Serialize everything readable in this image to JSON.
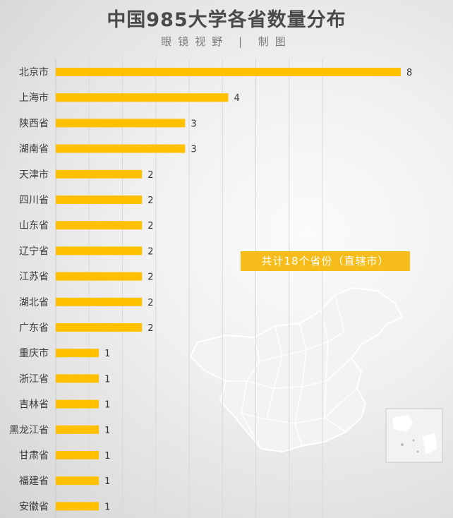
{
  "header": {
    "title": "中国985大学各省数量分布",
    "subtitle": "眼镜视野 | 制图"
  },
  "annotation": "共计18个省份（直辖市）",
  "colors": {
    "bar": "#ffc000",
    "annotation_bg": "#f6bd1a",
    "grid": "#d8d8d8"
  },
  "chart_data": {
    "type": "bar",
    "orientation": "horizontal",
    "title": "中国985大学各省数量分布",
    "categories": [
      "北京市",
      "上海市",
      "陕西省",
      "湖南省",
      "天津市",
      "四川省",
      "山东省",
      "辽宁省",
      "江苏省",
      "湖北省",
      "广东省",
      "重庆市",
      "浙江省",
      "吉林省",
      "黑龙江省",
      "甘肃省",
      "福建省",
      "安徽省"
    ],
    "values": [
      8,
      4,
      3,
      3,
      2,
      2,
      2,
      2,
      2,
      2,
      2,
      1,
      1,
      1,
      1,
      1,
      1,
      1
    ],
    "xlim": [
      0,
      8
    ],
    "grid": true,
    "annotations": [
      "共计18个省份（直辖市）"
    ]
  }
}
